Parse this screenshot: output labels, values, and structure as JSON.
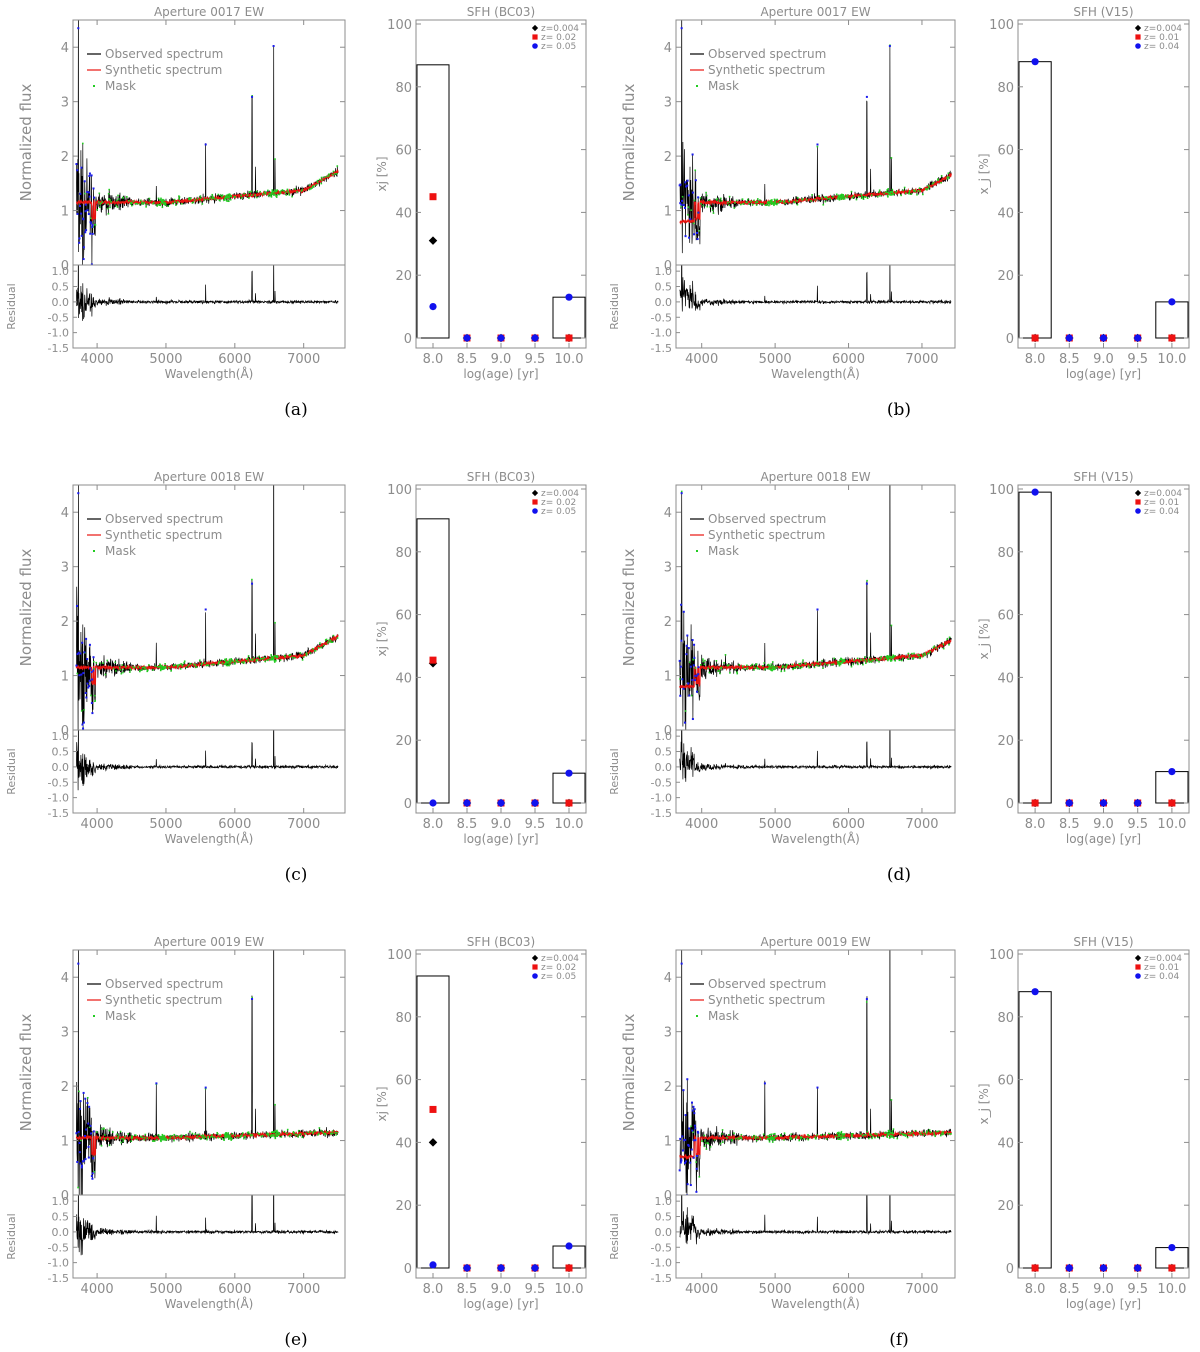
{
  "figure": {
    "panels": [
      {
        "caption": "(a)",
        "spectrum": {
          "title": "Aperture 0017 EW",
          "ylabel": "Normalized flux",
          "residual_label": "Residual",
          "xlabel": "Wavelength(Å)",
          "legend": [
            "Observed spectrum",
            "Synthetic spectrum",
            "Mask"
          ],
          "xlim": [
            3650,
            7600
          ],
          "ylim": [
            0,
            4.5
          ],
          "res_ylim": [
            -1.5,
            1.2
          ]
        },
        "sfh": {
          "title": "SFH (BC03)",
          "ylabel": "xj [%]",
          "xlabel": "log(age) [yr]",
          "legend": [
            "z=0.004",
            "z= 0.02",
            "z= 0.05"
          ],
          "categories": [
            "8.0",
            "8.5",
            "9.0",
            "9.5",
            "10.0"
          ],
          "bars": [
            87,
            0,
            0,
            0,
            13
          ],
          "series": [
            {
              "name": "z=0.004",
              "values": [
                31,
                0,
                0,
                0,
                0
              ]
            },
            {
              "name": "z= 0.02",
              "values": [
                45,
                0,
                0,
                0,
                0
              ]
            },
            {
              "name": "z= 0.05",
              "values": [
                10,
                0,
                0,
                0,
                13
              ]
            }
          ]
        }
      },
      {
        "caption": "(b)",
        "spectrum": {
          "title": "Aperture 0017 EW",
          "ylabel": "Normalized flux",
          "residual_label": "Residual",
          "xlabel": "Wavelength(Å)",
          "legend": [
            "Observed spectrum",
            "Synthetic spectrum",
            "Mask"
          ],
          "xlim": [
            3650,
            7450
          ],
          "ylim": [
            0,
            4.5
          ],
          "res_ylim": [
            -1.5,
            1.2
          ]
        },
        "sfh": {
          "title": "SFH (V15)",
          "ylabel": "x_j [%]",
          "xlabel": "log(age) [yr]",
          "legend": [
            "z=0.004",
            "z= 0.01",
            "z= 0.04"
          ],
          "categories": [
            "8.0",
            "8.5",
            "9.0",
            "9.5",
            "10.0"
          ],
          "bars": [
            88,
            0,
            0,
            0,
            11.5
          ],
          "series": [
            {
              "name": "z=0.004",
              "values": [
                0,
                0,
                0,
                0,
                0
              ]
            },
            {
              "name": "z= 0.01",
              "values": [
                0,
                0,
                0,
                0,
                0
              ]
            },
            {
              "name": "z= 0.04",
              "values": [
                88,
                0,
                0,
                0,
                11.5
              ]
            }
          ]
        }
      },
      {
        "caption": "(c)",
        "spectrum": {
          "title": "Aperture 0018 EW",
          "ylabel": "Normalized flux",
          "residual_label": "Residual",
          "xlabel": "Wavelength(Å)",
          "legend": [
            "Observed spectrum",
            "Synthetic spectrum",
            "Mask"
          ],
          "xlim": [
            3650,
            7600
          ],
          "ylim": [
            0,
            4.5
          ],
          "res_ylim": [
            -1.5,
            1.2
          ]
        },
        "sfh": {
          "title": "SFH (BC03)",
          "ylabel": "xj [%]",
          "xlabel": "log(age) [yr]",
          "legend": [
            "z=0.004",
            "z= 0.02",
            "z= 0.05"
          ],
          "categories": [
            "8.0",
            "8.5",
            "9.0",
            "9.5",
            "10.0"
          ],
          "bars": [
            90.5,
            0,
            0,
            0,
            9.5
          ],
          "series": [
            {
              "name": "z=0.004",
              "values": [
                44.5,
                0,
                0,
                0,
                0
              ]
            },
            {
              "name": "z= 0.02",
              "values": [
                45.5,
                0,
                0,
                0,
                0
              ]
            },
            {
              "name": "z= 0.05",
              "values": [
                0,
                0,
                0,
                0,
                9.5
              ]
            }
          ]
        }
      },
      {
        "caption": "(d)",
        "spectrum": {
          "title": "Aperture 0018 EW",
          "ylabel": "Normalized flux",
          "residual_label": "Residual",
          "xlabel": "Wavelength(Å)",
          "legend": [
            "Observed spectrum",
            "Synthetic spectrum",
            "Mask"
          ],
          "xlim": [
            3650,
            7450
          ],
          "ylim": [
            0,
            4.5
          ],
          "res_ylim": [
            -1.5,
            1.2
          ]
        },
        "sfh": {
          "title": "SFH (V15)",
          "ylabel": "x_j [%]",
          "xlabel": "log(age) [yr]",
          "legend": [
            "z=0.004",
            "z= 0.01",
            "z= 0.04"
          ],
          "categories": [
            "8.0",
            "8.5",
            "9.0",
            "9.5",
            "10.0"
          ],
          "bars": [
            99,
            0,
            0,
            0,
            10
          ],
          "series": [
            {
              "name": "z=0.004",
              "values": [
                0,
                0,
                0,
                0,
                0
              ]
            },
            {
              "name": "z= 0.01",
              "values": [
                0,
                0,
                0,
                0,
                0
              ]
            },
            {
              "name": "z= 0.04",
              "values": [
                99,
                0,
                0,
                0,
                10
              ]
            }
          ]
        }
      },
      {
        "caption": "(e)",
        "spectrum": {
          "title": "Aperture 0019 EW",
          "ylabel": "Normalized flux",
          "residual_label": "Residual",
          "xlabel": "Wavelength(Å)",
          "legend": [
            "Observed spectrum",
            "Synthetic spectrum",
            "Mask"
          ],
          "xlim": [
            3650,
            7600
          ],
          "ylim": [
            0,
            4.5
          ],
          "res_ylim": [
            -1.5,
            1.2
          ]
        },
        "sfh": {
          "title": "SFH (BC03)",
          "ylabel": "xj [%]",
          "xlabel": "log(age) [yr]",
          "legend": [
            "z=0.004",
            "z= 0.02",
            "z= 0.05"
          ],
          "categories": [
            "8.0",
            "8.5",
            "9.0",
            "9.5",
            "10.0"
          ],
          "bars": [
            93,
            0,
            0,
            0,
            7
          ],
          "series": [
            {
              "name": "z=0.004",
              "values": [
                40,
                0,
                0,
                0,
                0
              ]
            },
            {
              "name": "z= 0.02",
              "values": [
                50.5,
                0,
                0,
                0,
                0
              ]
            },
            {
              "name": "z= 0.05",
              "values": [
                1,
                0,
                0,
                0,
                7
              ]
            }
          ]
        }
      },
      {
        "caption": "(f)",
        "spectrum": {
          "title": "Aperture 0019 EW",
          "ylabel": "Normalized flux",
          "residual_label": "Residual",
          "xlabel": "Wavelength(Å)",
          "legend": [
            "Observed spectrum",
            "Synthetic spectrum",
            "Mask"
          ],
          "xlim": [
            3650,
            7450
          ],
          "ylim": [
            0,
            4.5
          ],
          "res_ylim": [
            -1.5,
            1.2
          ]
        },
        "sfh": {
          "title": "SFH (V15)",
          "ylabel": "x_j [%]",
          "xlabel": "log(age) [yr]",
          "legend": [
            "z=0.004",
            "z= 0.01",
            "z= 0.04"
          ],
          "categories": [
            "8.0",
            "8.5",
            "9.0",
            "9.5",
            "10.0"
          ],
          "bars": [
            88,
            0,
            0,
            0,
            6.5
          ],
          "series": [
            {
              "name": "z=0.004",
              "values": [
                0,
                0,
                0,
                0,
                0
              ]
            },
            {
              "name": "z= 0.01",
              "values": [
                0,
                0,
                0,
                0,
                0
              ]
            },
            {
              "name": "z= 0.04",
              "values": [
                88,
                0,
                0,
                0,
                6.5
              ]
            }
          ]
        }
      }
    ],
    "common": {
      "flux_ticks": [
        "0",
        "1",
        "2",
        "3",
        "4"
      ],
      "residual_ticks": [
        "1.0",
        "0.5",
        "0.0",
        "-0.5",
        "-1.0",
        "-1.5"
      ],
      "wavelength_ticks": [
        "4000",
        "5000",
        "6000",
        "7000"
      ],
      "sfh_yticks": [
        "0",
        "20",
        "40",
        "60",
        "80",
        "100"
      ]
    },
    "colors": {
      "observed": "#000000",
      "synthetic": "#e8130f",
      "mask": "#22cc22",
      "masked_points": "#1a1aee",
      "axis": "#8c8c8c",
      "marker_z1": "#000000",
      "marker_z2": "#ee1111",
      "marker_z3": "#1111ee"
    }
  },
  "chart_data": [
    {
      "type": "line",
      "title": "Aperture 0017 EW",
      "xlabel": "Wavelength(Å)",
      "ylabel": "Normalized flux",
      "series": [
        {
          "name": "Observed spectrum"
        },
        {
          "name": "Synthetic spectrum"
        },
        {
          "name": "Mask"
        }
      ],
      "xlim": [
        3650,
        7600
      ],
      "ylim": [
        0,
        4.5
      ],
      "lower_panel_ylabel": "Residual",
      "lower_panel_ylim": [
        -1.5,
        1.2
      ]
    },
    {
      "type": "bar",
      "title": "SFH (BC03)",
      "xlabel": "log(age) [yr]",
      "ylabel": "xj [%]",
      "categories": [
        "8.0",
        "8.5",
        "9.0",
        "9.5",
        "10.0"
      ],
      "values": [
        87,
        0,
        0,
        0,
        13
      ],
      "ylim": [
        0,
        100
      ],
      "series": [
        {
          "name": "z=0.004",
          "values": [
            31,
            0,
            0,
            0,
            0
          ]
        },
        {
          "name": "z= 0.02",
          "values": [
            45,
            0,
            0,
            0,
            0
          ]
        },
        {
          "name": "z= 0.05",
          "values": [
            10,
            0,
            0,
            0,
            13
          ]
        }
      ]
    },
    {
      "type": "line",
      "title": "Aperture 0017 EW",
      "xlabel": "Wavelength(Å)",
      "ylabel": "Normalized flux",
      "series": [
        {
          "name": "Observed spectrum"
        },
        {
          "name": "Synthetic spectrum"
        },
        {
          "name": "Mask"
        }
      ],
      "xlim": [
        3650,
        7450
      ],
      "ylim": [
        0,
        4.5
      ],
      "lower_panel_ylabel": "Residual",
      "lower_panel_ylim": [
        -1.5,
        1.2
      ]
    },
    {
      "type": "bar",
      "title": "SFH (V15)",
      "xlabel": "log(age) [yr]",
      "ylabel": "x_j [%]",
      "categories": [
        "8.0",
        "8.5",
        "9.0",
        "9.5",
        "10.0"
      ],
      "values": [
        88,
        0,
        0,
        0,
        11.5
      ],
      "ylim": [
        0,
        100
      ],
      "series": [
        {
          "name": "z=0.004",
          "values": [
            0,
            0,
            0,
            0,
            0
          ]
        },
        {
          "name": "z= 0.01",
          "values": [
            0,
            0,
            0,
            0,
            0
          ]
        },
        {
          "name": "z= 0.04",
          "values": [
            88,
            0,
            0,
            0,
            11.5
          ]
        }
      ]
    },
    {
      "type": "line",
      "title": "Aperture 0018 EW",
      "xlabel": "Wavelength(Å)",
      "ylabel": "Normalized flux",
      "series": [
        {
          "name": "Observed spectrum"
        },
        {
          "name": "Synthetic spectrum"
        },
        {
          "name": "Mask"
        }
      ],
      "xlim": [
        3650,
        7600
      ],
      "ylim": [
        0,
        4.5
      ],
      "lower_panel_ylabel": "Residual",
      "lower_panel_ylim": [
        -1.5,
        1.2
      ]
    },
    {
      "type": "bar",
      "title": "SFH (BC03)",
      "xlabel": "log(age) [yr]",
      "ylabel": "xj [%]",
      "categories": [
        "8.0",
        "8.5",
        "9.0",
        "9.5",
        "10.0"
      ],
      "values": [
        90.5,
        0,
        0,
        0,
        9.5
      ],
      "ylim": [
        0,
        100
      ],
      "series": [
        {
          "name": "z=0.004",
          "values": [
            44.5,
            0,
            0,
            0,
            0
          ]
        },
        {
          "name": "z= 0.02",
          "values": [
            45.5,
            0,
            0,
            0,
            0
          ]
        },
        {
          "name": "z= 0.05",
          "values": [
            0,
            0,
            0,
            0,
            9.5
          ]
        }
      ]
    },
    {
      "type": "line",
      "title": "Aperture 0018 EW",
      "xlabel": "Wavelength(Å)",
      "ylabel": "Normalized flux",
      "series": [
        {
          "name": "Observed spectrum"
        },
        {
          "name": "Synthetic spectrum"
        },
        {
          "name": "Mask"
        }
      ],
      "xlim": [
        3650,
        7450
      ],
      "ylim": [
        0,
        4.5
      ],
      "lower_panel_ylabel": "Residual",
      "lower_panel_ylim": [
        -1.5,
        1.2
      ]
    },
    {
      "type": "bar",
      "title": "SFH (V15)",
      "xlabel": "log(age) [yr]",
      "ylabel": "x_j [%]",
      "categories": [
        "8.0",
        "8.5",
        "9.0",
        "9.5",
        "10.0"
      ],
      "values": [
        99,
        0,
        0,
        0,
        10
      ],
      "ylim": [
        0,
        100
      ],
      "series": [
        {
          "name": "z=0.004",
          "values": [
            0,
            0,
            0,
            0,
            0
          ]
        },
        {
          "name": "z= 0.01",
          "values": [
            0,
            0,
            0,
            0,
            0
          ]
        },
        {
          "name": "z= 0.04",
          "values": [
            99,
            0,
            0,
            0,
            10
          ]
        }
      ]
    },
    {
      "type": "line",
      "title": "Aperture 0019 EW",
      "xlabel": "Wavelength(Å)",
      "ylabel": "Normalized flux",
      "series": [
        {
          "name": "Observed spectrum"
        },
        {
          "name": "Synthetic spectrum"
        },
        {
          "name": "Mask"
        }
      ],
      "xlim": [
        3650,
        7600
      ],
      "ylim": [
        0,
        4.5
      ],
      "lower_panel_ylabel": "Residual",
      "lower_panel_ylim": [
        -1.5,
        1.2
      ]
    },
    {
      "type": "bar",
      "title": "SFH (BC03)",
      "xlabel": "log(age) [yr]",
      "ylabel": "xj [%]",
      "categories": [
        "8.0",
        "8.5",
        "9.0",
        "9.5",
        "10.0"
      ],
      "values": [
        93,
        0,
        0,
        0,
        7
      ],
      "ylim": [
        0,
        100
      ],
      "series": [
        {
          "name": "z=0.004",
          "values": [
            40,
            0,
            0,
            0,
            0
          ]
        },
        {
          "name": "z= 0.02",
          "values": [
            50.5,
            0,
            0,
            0,
            0
          ]
        },
        {
          "name": "z= 0.05",
          "values": [
            1,
            0,
            0,
            0,
            7
          ]
        }
      ]
    },
    {
      "type": "line",
      "title": "Aperture 0019 EW",
      "xlabel": "Wavelength(Å)",
      "ylabel": "Normalized flux",
      "series": [
        {
          "name": "Observed spectrum"
        },
        {
          "name": "Synthetic spectrum"
        },
        {
          "name": "Mask"
        }
      ],
      "xlim": [
        3650,
        7450
      ],
      "ylim": [
        0,
        4.5
      ],
      "lower_panel_ylabel": "Residual",
      "lower_panel_ylim": [
        -1.5,
        1.2
      ]
    },
    {
      "type": "bar",
      "title": "SFH (V15)",
      "xlabel": "log(age) [yr]",
      "ylabel": "x_j [%]",
      "categories": [
        "8.0",
        "8.5",
        "9.0",
        "9.5",
        "10.0"
      ],
      "values": [
        88,
        0,
        0,
        0,
        6.5
      ],
      "ylim": [
        0,
        100
      ],
      "series": [
        {
          "name": "z=0.004",
          "values": [
            0,
            0,
            0,
            0,
            0
          ]
        },
        {
          "name": "z= 0.01",
          "values": [
            0,
            0,
            0,
            0,
            0
          ]
        },
        {
          "name": "z= 0.04",
          "values": [
            88,
            0,
            0,
            0,
            6.5
          ]
        }
      ]
    }
  ]
}
